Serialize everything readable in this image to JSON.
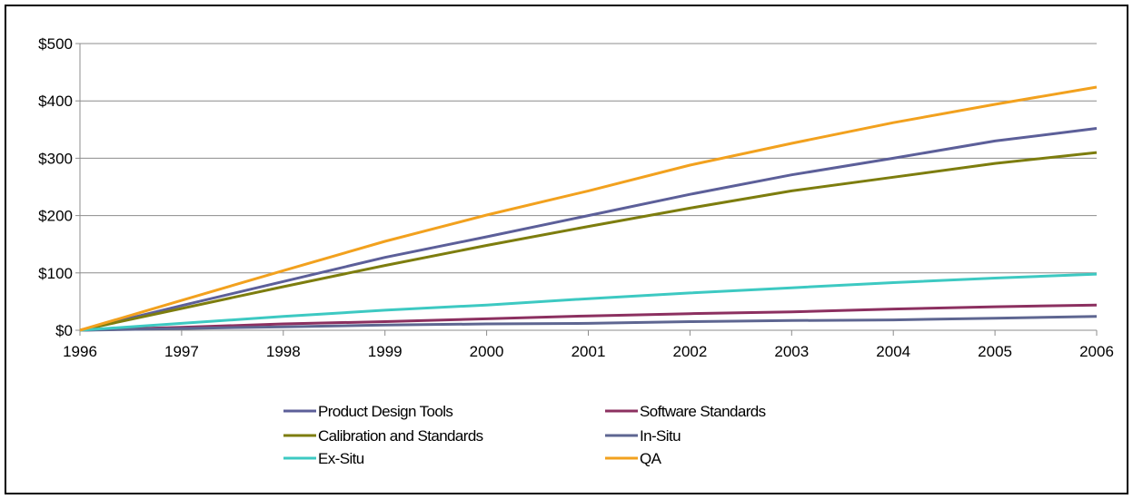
{
  "chart_data": {
    "type": "line",
    "title": "",
    "xlabel": "",
    "ylabel": "",
    "categories": [
      "1996",
      "1997",
      "1998",
      "1999",
      "2000",
      "2001",
      "2002",
      "2003",
      "2004",
      "2005",
      "2006"
    ],
    "ylim": [
      0,
      500
    ],
    "yticks": [
      0,
      100,
      200,
      300,
      400,
      500
    ],
    "ytick_labels": [
      "$0",
      "$100",
      "$200",
      "$300",
      "$400",
      "$500"
    ],
    "grid": true,
    "legend_position": "bottom",
    "series": [
      {
        "name": "Product Design Tools",
        "color": "#5c5f99",
        "values": [
          0,
          43,
          85,
          127,
          163,
          200,
          237,
          271,
          300,
          330,
          352
        ]
      },
      {
        "name": "Software Standards",
        "color": "#8c3060",
        "values": [
          0,
          5,
          11,
          15,
          20,
          25,
          29,
          32,
          37,
          41,
          44
        ]
      },
      {
        "name": "Calibration and Standards",
        "color": "#7d7d0e",
        "values": [
          0,
          38,
          76,
          113,
          148,
          181,
          213,
          243,
          267,
          291,
          310
        ]
      },
      {
        "name": "In-Situ",
        "color": "#5e6691",
        "values": [
          0,
          3,
          6,
          9,
          11,
          12,
          15,
          17,
          18,
          21,
          24
        ]
      },
      {
        "name": "Ex-Situ",
        "color": "#3dc9c2",
        "values": [
          0,
          12,
          24,
          35,
          44,
          55,
          65,
          74,
          83,
          91,
          98
        ]
      },
      {
        "name": "QA",
        "color": "#f2a11e",
        "values": [
          0,
          52,
          104,
          155,
          201,
          243,
          288,
          326,
          362,
          394,
          424
        ]
      }
    ]
  }
}
